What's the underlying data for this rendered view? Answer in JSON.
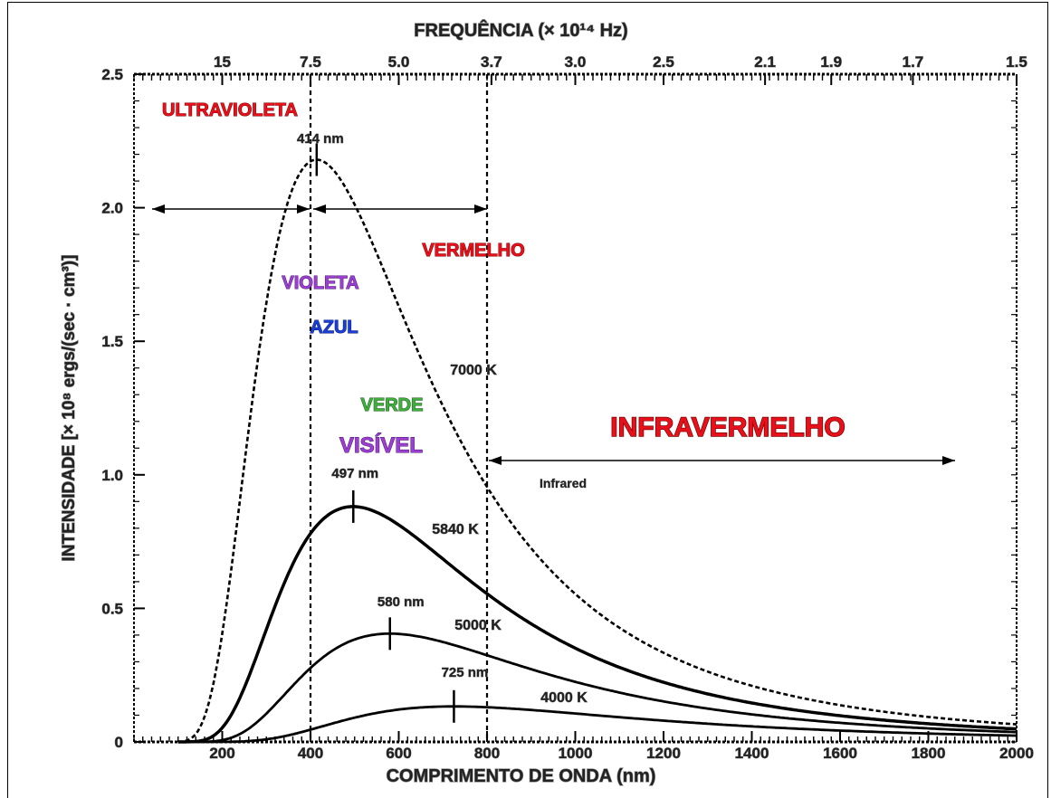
{
  "chart_data": {
    "type": "line",
    "xlabel": "COMPRIMENTO DE ONDA (nm)",
    "ylabel": "INTENSIDADE  [× 10⁸ ergs/(sec · cm³)]",
    "top_axis_label": "FREQUÊNCIA (× 10¹⁴ Hz)",
    "xlim": [
      0,
      2000
    ],
    "ylim": [
      0,
      2.5
    ],
    "x_ticks": [
      200,
      400,
      600,
      800,
      1000,
      1200,
      1400,
      1600,
      1800,
      2000
    ],
    "x_tick_labels": [
      "200",
      "400",
      "600",
      "800",
      "1000",
      "1200",
      "1400",
      "1600",
      "1800",
      "2000"
    ],
    "y_ticks": [
      0,
      0.5,
      1.0,
      1.5,
      2.0,
      2.5
    ],
    "y_tick_labels": [
      "0",
      "0.5",
      "1.0",
      "1.5",
      "2.0",
      "2.5"
    ],
    "top_ticks": [
      {
        "label": "15",
        "wavelength": 200
      },
      {
        "label": "7.5",
        "wavelength": 400
      },
      {
        "label": "5.0",
        "wavelength": 600
      },
      {
        "label": "3.7",
        "wavelength": 810
      },
      {
        "label": "3.0",
        "wavelength": 1000
      },
      {
        "label": "2.5",
        "wavelength": 1200
      },
      {
        "label": "2.1",
        "wavelength": 1430
      },
      {
        "label": "1.9",
        "wavelength": 1580
      },
      {
        "label": "1.7",
        "wavelength": 1765
      },
      {
        "label": "1.5",
        "wavelength": 2000
      }
    ],
    "grid": false,
    "series": [
      {
        "name": "7000 K",
        "temperature": 7000,
        "peak_nm": 414,
        "peak_label": "414 nm",
        "dashed": true,
        "color": "#000000"
      },
      {
        "name": "5840 K",
        "temperature": 5840,
        "peak_nm": 497,
        "peak_label": "497 nm",
        "dashed": false,
        "color": "#000000"
      },
      {
        "name": "5000 K",
        "temperature": 5000,
        "peak_nm": 580,
        "peak_label": "580 nm",
        "dashed": false,
        "color": "#000000"
      },
      {
        "name": "4000 K",
        "temperature": 4000,
        "peak_nm": 725,
        "peak_label": "725 nm",
        "dashed": false,
        "color": "#000000"
      }
    ],
    "vertical_lines_nm": [
      400,
      800
    ],
    "annotations": {
      "ultraviolet": "ULTRAVIOLETA",
      "red": "VERMELHO",
      "violet": "VIOLETA",
      "blue": "AZUL",
      "green": "VERDE",
      "visible": "VISÍVEL",
      "infrared": "INFRAVERMELHO",
      "infrared_small": "Infrared"
    },
    "colors": {
      "ultraviolet": "#e8101a",
      "red": "#e8101a",
      "violet": "#9a3fd0",
      "blue": "#1a3fd8",
      "green": "#3fae3f",
      "visible": "#9a3fd0",
      "infrared": "#e8101a"
    }
  }
}
